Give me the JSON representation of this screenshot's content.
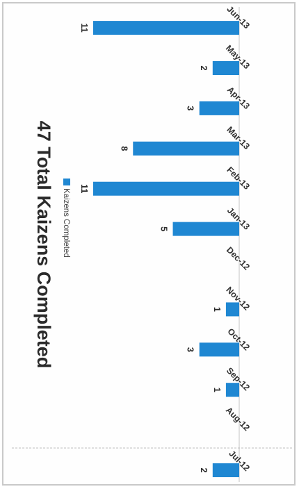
{
  "chart_data": {
    "type": "bar",
    "title": "47 Total Kaizens Completed",
    "legend": [
      "Kaizens Completed"
    ],
    "legend_position": "top",
    "categories": [
      "Jul-12",
      "Aug-12",
      "Sep-12",
      "Oct-12",
      "Nov-12",
      "Dec-12",
      "Jan-13",
      "Feb-13",
      "Mar-13",
      "Apr-13",
      "May-13",
      "Jun-13"
    ],
    "series": [
      {
        "name": "Kaizens Completed",
        "values": [
          2,
          null,
          1,
          3,
          1,
          null,
          5,
          11,
          8,
          3,
          2,
          11
        ],
        "color": "#1f87d2"
      }
    ],
    "value_labels": [
      "2",
      "",
      "1",
      "3",
      "1",
      "",
      "5",
      "11",
      "8",
      "3",
      "2",
      "11"
    ],
    "ylim": [
      0,
      11
    ],
    "grid": false,
    "orientation": "rotated 90° clockwise"
  }
}
